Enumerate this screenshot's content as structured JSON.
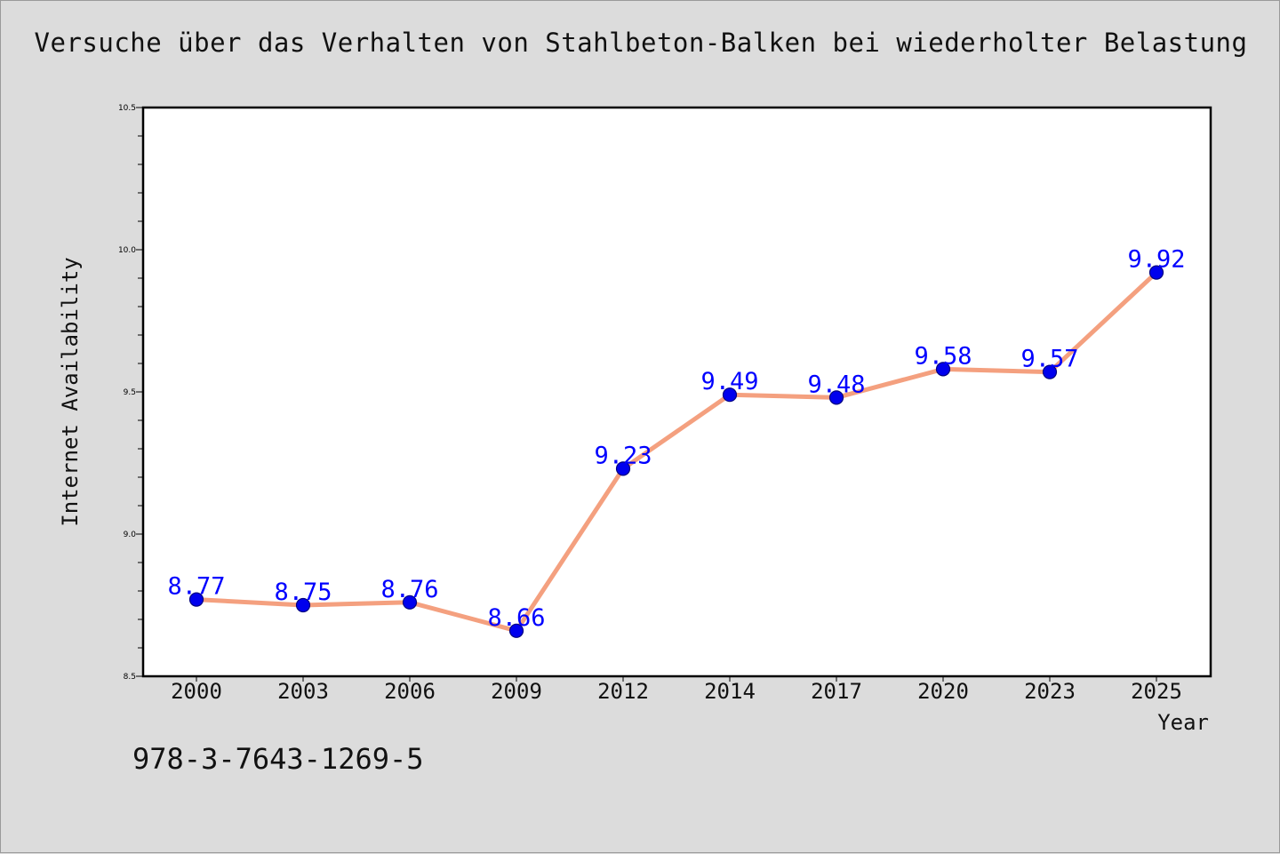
{
  "chart_data": {
    "type": "line",
    "title": "Versuche über das Verhalten von Stahlbeton-Balken bei wiederholter Belastung",
    "xlabel": "Year",
    "ylabel": "Internet Availability",
    "categories": [
      "2000",
      "2003",
      "2006",
      "2009",
      "2012",
      "2014",
      "2017",
      "2020",
      "2023",
      "2025"
    ],
    "series": [
      {
        "values": [
          8.77,
          8.75,
          8.76,
          8.66,
          9.23,
          9.49,
          9.48,
          9.58,
          9.57,
          9.92
        ]
      }
    ],
    "value_labels": [
      "8.77",
      "8.75",
      "8.76",
      "8.66",
      "9.23",
      "9.49",
      "9.48",
      "9.58",
      "9.57",
      "9.92"
    ],
    "ylim": [
      8.5,
      10.5
    ],
    "ytick_labels": [
      "8.5",
      "9.0",
      "9.5",
      "10.0",
      "10.5"
    ],
    "grid": false,
    "colors": {
      "line": "#f4a07f",
      "marker_fill": "#0000ee",
      "marker_edge": "#000080",
      "value_label": "#0000ff",
      "plot_background": "#ffffff",
      "figure_background": "#dcdcdc"
    }
  },
  "annotation": {
    "isbn": "978-3-7643-1269-5"
  }
}
